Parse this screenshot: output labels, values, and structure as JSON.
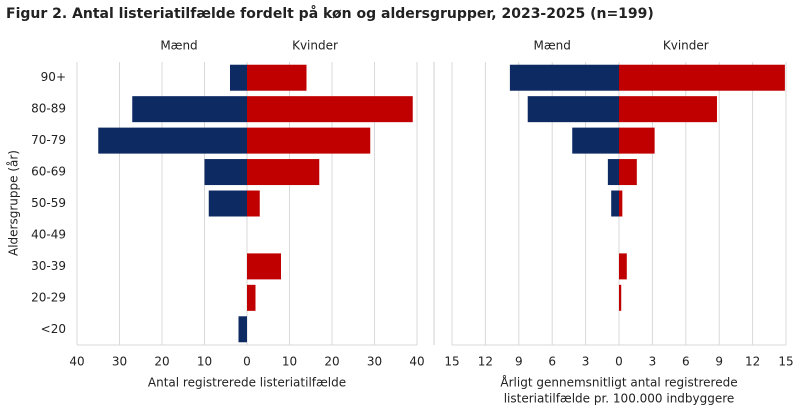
{
  "title": "Figur 2. Antal listeriatilfælde fordelt på køn og aldersgrupper, 2023-2025 (n=199)",
  "ylabel": "Aldersgruppe (år)",
  "chart_data": [
    {
      "type": "pyramid",
      "categories": [
        "90+",
        "80-89",
        "70-79",
        "60-69",
        "50-59",
        "40-49",
        "30-39",
        "20-29",
        "<20"
      ],
      "series": [
        {
          "name": "Mænd",
          "color": "#0d2a63",
          "side": "left",
          "values": [
            4,
            27,
            35,
            10,
            9,
            0,
            0,
            0,
            2
          ]
        },
        {
          "name": "Kvinder",
          "color": "#c00000",
          "side": "right",
          "values": [
            14,
            39,
            29,
            17,
            3,
            0,
            8,
            2,
            0
          ]
        }
      ],
      "xlim": [
        -40,
        40
      ],
      "xticks": [
        {
          "value": -40,
          "label": "40"
        },
        {
          "value": -30,
          "label": "30"
        },
        {
          "value": -20,
          "label": "20"
        },
        {
          "value": -10,
          "label": "10"
        },
        0,
        10,
        20,
        30,
        40
      ],
      "xlabel": [
        "Antal registrerede  listeriatilfælde"
      ],
      "grid": true
    },
    {
      "type": "pyramid",
      "series": [
        {
          "name": "Mænd",
          "color": "#0d2a63",
          "side": "left",
          "values": [
            9.8,
            8.2,
            4.2,
            1.0,
            0.7,
            0,
            0,
            0,
            0
          ]
        },
        {
          "name": "Kvinder",
          "color": "#c00000",
          "side": "right",
          "values": [
            14.9,
            8.8,
            3.2,
            1.6,
            0.3,
            0,
            0.7,
            0.2,
            0
          ]
        }
      ],
      "xlim": [
        -15,
        15
      ],
      "xticks": [
        {
          "value": -15,
          "label": "15"
        },
        {
          "value": -12,
          "label": "12"
        },
        {
          "value": -9,
          "label": "9"
        },
        {
          "value": -6,
          "label": "6"
        },
        {
          "value": -3,
          "label": "3"
        },
        0,
        3,
        6,
        9,
        12,
        15
      ],
      "xlabel": [
        "Årligt gennemsnitligt antal registrerede",
        "listeriatilfælde pr. 100.000 indbyggere"
      ],
      "grid": true
    }
  ]
}
